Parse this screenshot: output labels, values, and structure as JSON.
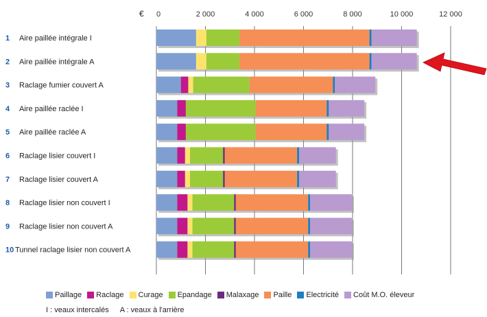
{
  "chart_data": {
    "type": "bar",
    "orientation": "horizontal",
    "stacked": true,
    "unit_label": "€",
    "xlim": [
      0,
      12000
    ],
    "x_ticks": [
      "0",
      "2 000",
      "4 000",
      "6 000",
      "8 000",
      "10 000",
      "12 000"
    ],
    "x_tick_values": [
      0,
      2000,
      4000,
      6000,
      8000,
      10000,
      12000
    ],
    "grid": "vertical",
    "category_numbers": [
      "1",
      "2",
      "3",
      "4",
      "5",
      "6",
      "7",
      "8",
      "9",
      "10"
    ],
    "categories": [
      "Aire paillée intégrale I",
      "Aire paillée intégrale A",
      "Raclage fumier couvert A",
      "Aire paillée raclée I",
      "Aire paillée raclée A",
      "Raclage lisier couvert I",
      "Raclage lisier couvert A",
      "Raclage lisier non couvert I",
      "Raclage lisier non couvert A",
      "Tunnel raclage lisier non couvert A"
    ],
    "series": [
      {
        "name": "Paillage",
        "color": "#7f9fd2",
        "values": [
          1620,
          1620,
          1000,
          850,
          850,
          850,
          850,
          850,
          850,
          850
        ]
      },
      {
        "name": "Raclage",
        "color": "#c2188b",
        "values": [
          0,
          0,
          300,
          350,
          350,
          320,
          320,
          420,
          420,
          420
        ]
      },
      {
        "name": "Curage",
        "color": "#fde36e",
        "values": [
          420,
          420,
          200,
          0,
          0,
          200,
          200,
          200,
          200,
          200
        ]
      },
      {
        "name": "Epandage",
        "color": "#9ccb3a",
        "values": [
          1350,
          1350,
          2300,
          2850,
          2850,
          1350,
          1350,
          1700,
          1700,
          1700
        ]
      },
      {
        "name": "Malaxage",
        "color": "#6a2c7e",
        "values": [
          0,
          0,
          0,
          0,
          0,
          70,
          70,
          70,
          70,
          70
        ]
      },
      {
        "name": "Paille",
        "color": "#f58f56",
        "values": [
          5300,
          5300,
          3400,
          2900,
          2900,
          2950,
          2950,
          2950,
          2950,
          2950
        ]
      },
      {
        "name": "Electricité",
        "color": "#1f7ec1",
        "values": [
          80,
          80,
          80,
          80,
          80,
          80,
          80,
          80,
          80,
          80
        ]
      },
      {
        "name": "Coût M.O. éleveur",
        "color": "#b99bd0",
        "values": [
          1850,
          1850,
          1650,
          1450,
          1450,
          1500,
          1500,
          1700,
          1700,
          1700
        ]
      }
    ],
    "annotation": "red-arrow-pointing-to-row-2",
    "notes": [
      "I : veaux intercalés",
      "A : veaux à l'arrière"
    ]
  }
}
